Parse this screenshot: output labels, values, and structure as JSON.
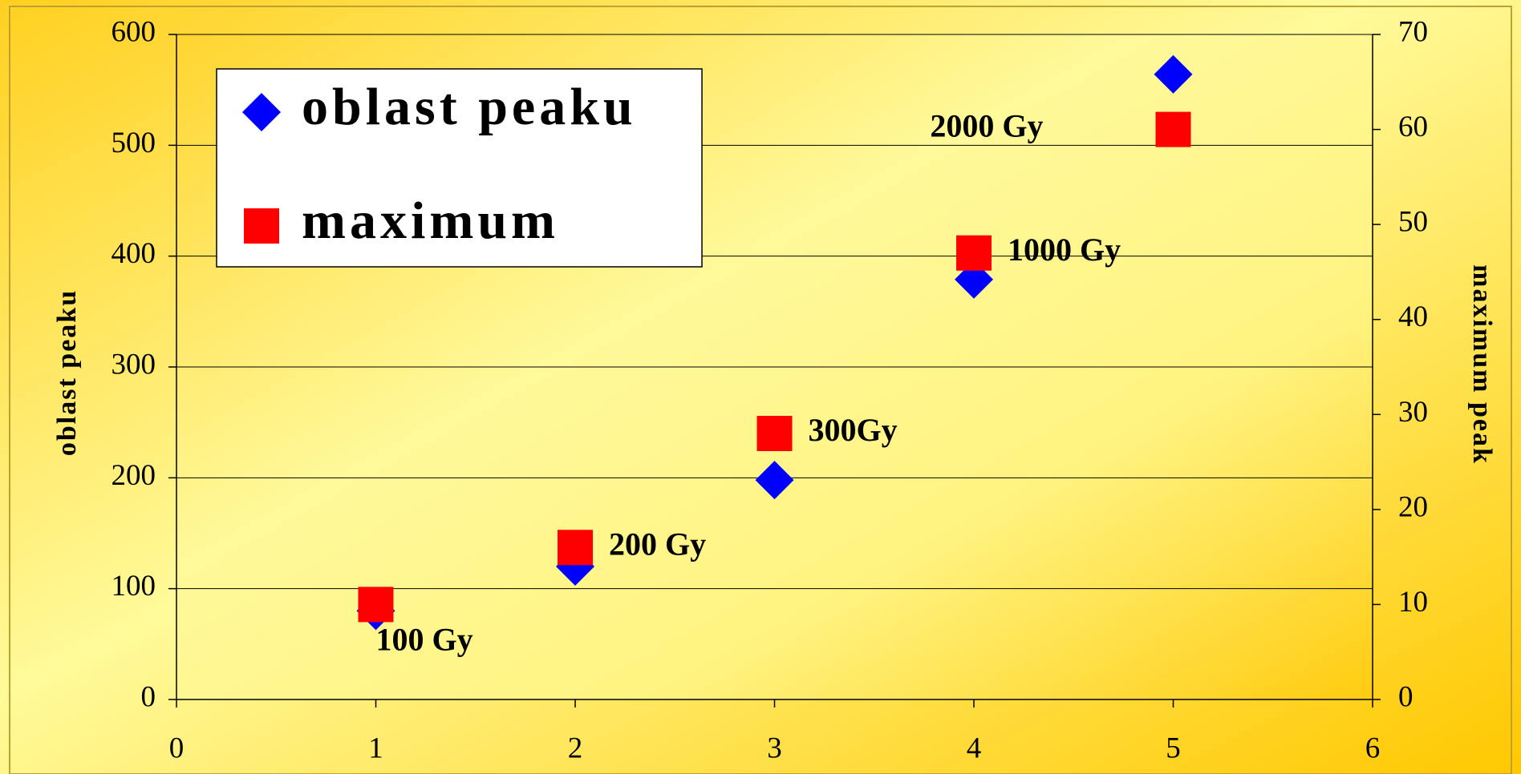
{
  "chart_data": {
    "type": "scatter",
    "y_label": "oblast peaku",
    "y2_label": "maximum peak",
    "xlim": [
      0,
      6
    ],
    "xticks": [
      0,
      1,
      2,
      3,
      4,
      5,
      6
    ],
    "ylim": [
      0,
      600
    ],
    "yticks": [
      0,
      100,
      200,
      300,
      400,
      500,
      600
    ],
    "y2lim": [
      0,
      70
    ],
    "y2ticks": [
      0,
      10,
      20,
      30,
      40,
      50,
      60,
      70
    ],
    "grid": true,
    "legend": "upper left",
    "point_labels": [
      "100 Gy",
      "200 Gy",
      "300Gy",
      "1000 Gy",
      "2000 Gy"
    ],
    "series": [
      {
        "name": "oblast peaku",
        "color": "#0000ff",
        "marker": "diamond",
        "x": [
          1,
          2,
          3,
          4,
          5
        ],
        "values": [
          80,
          120,
          198,
          379,
          564
        ]
      },
      {
        "name": "maximum",
        "color": "#ff0000",
        "marker": "square",
        "axis": "y2",
        "x": [
          1,
          2,
          3,
          4,
          5
        ],
        "values": [
          10,
          16,
          28,
          47,
          60
        ]
      }
    ]
  }
}
